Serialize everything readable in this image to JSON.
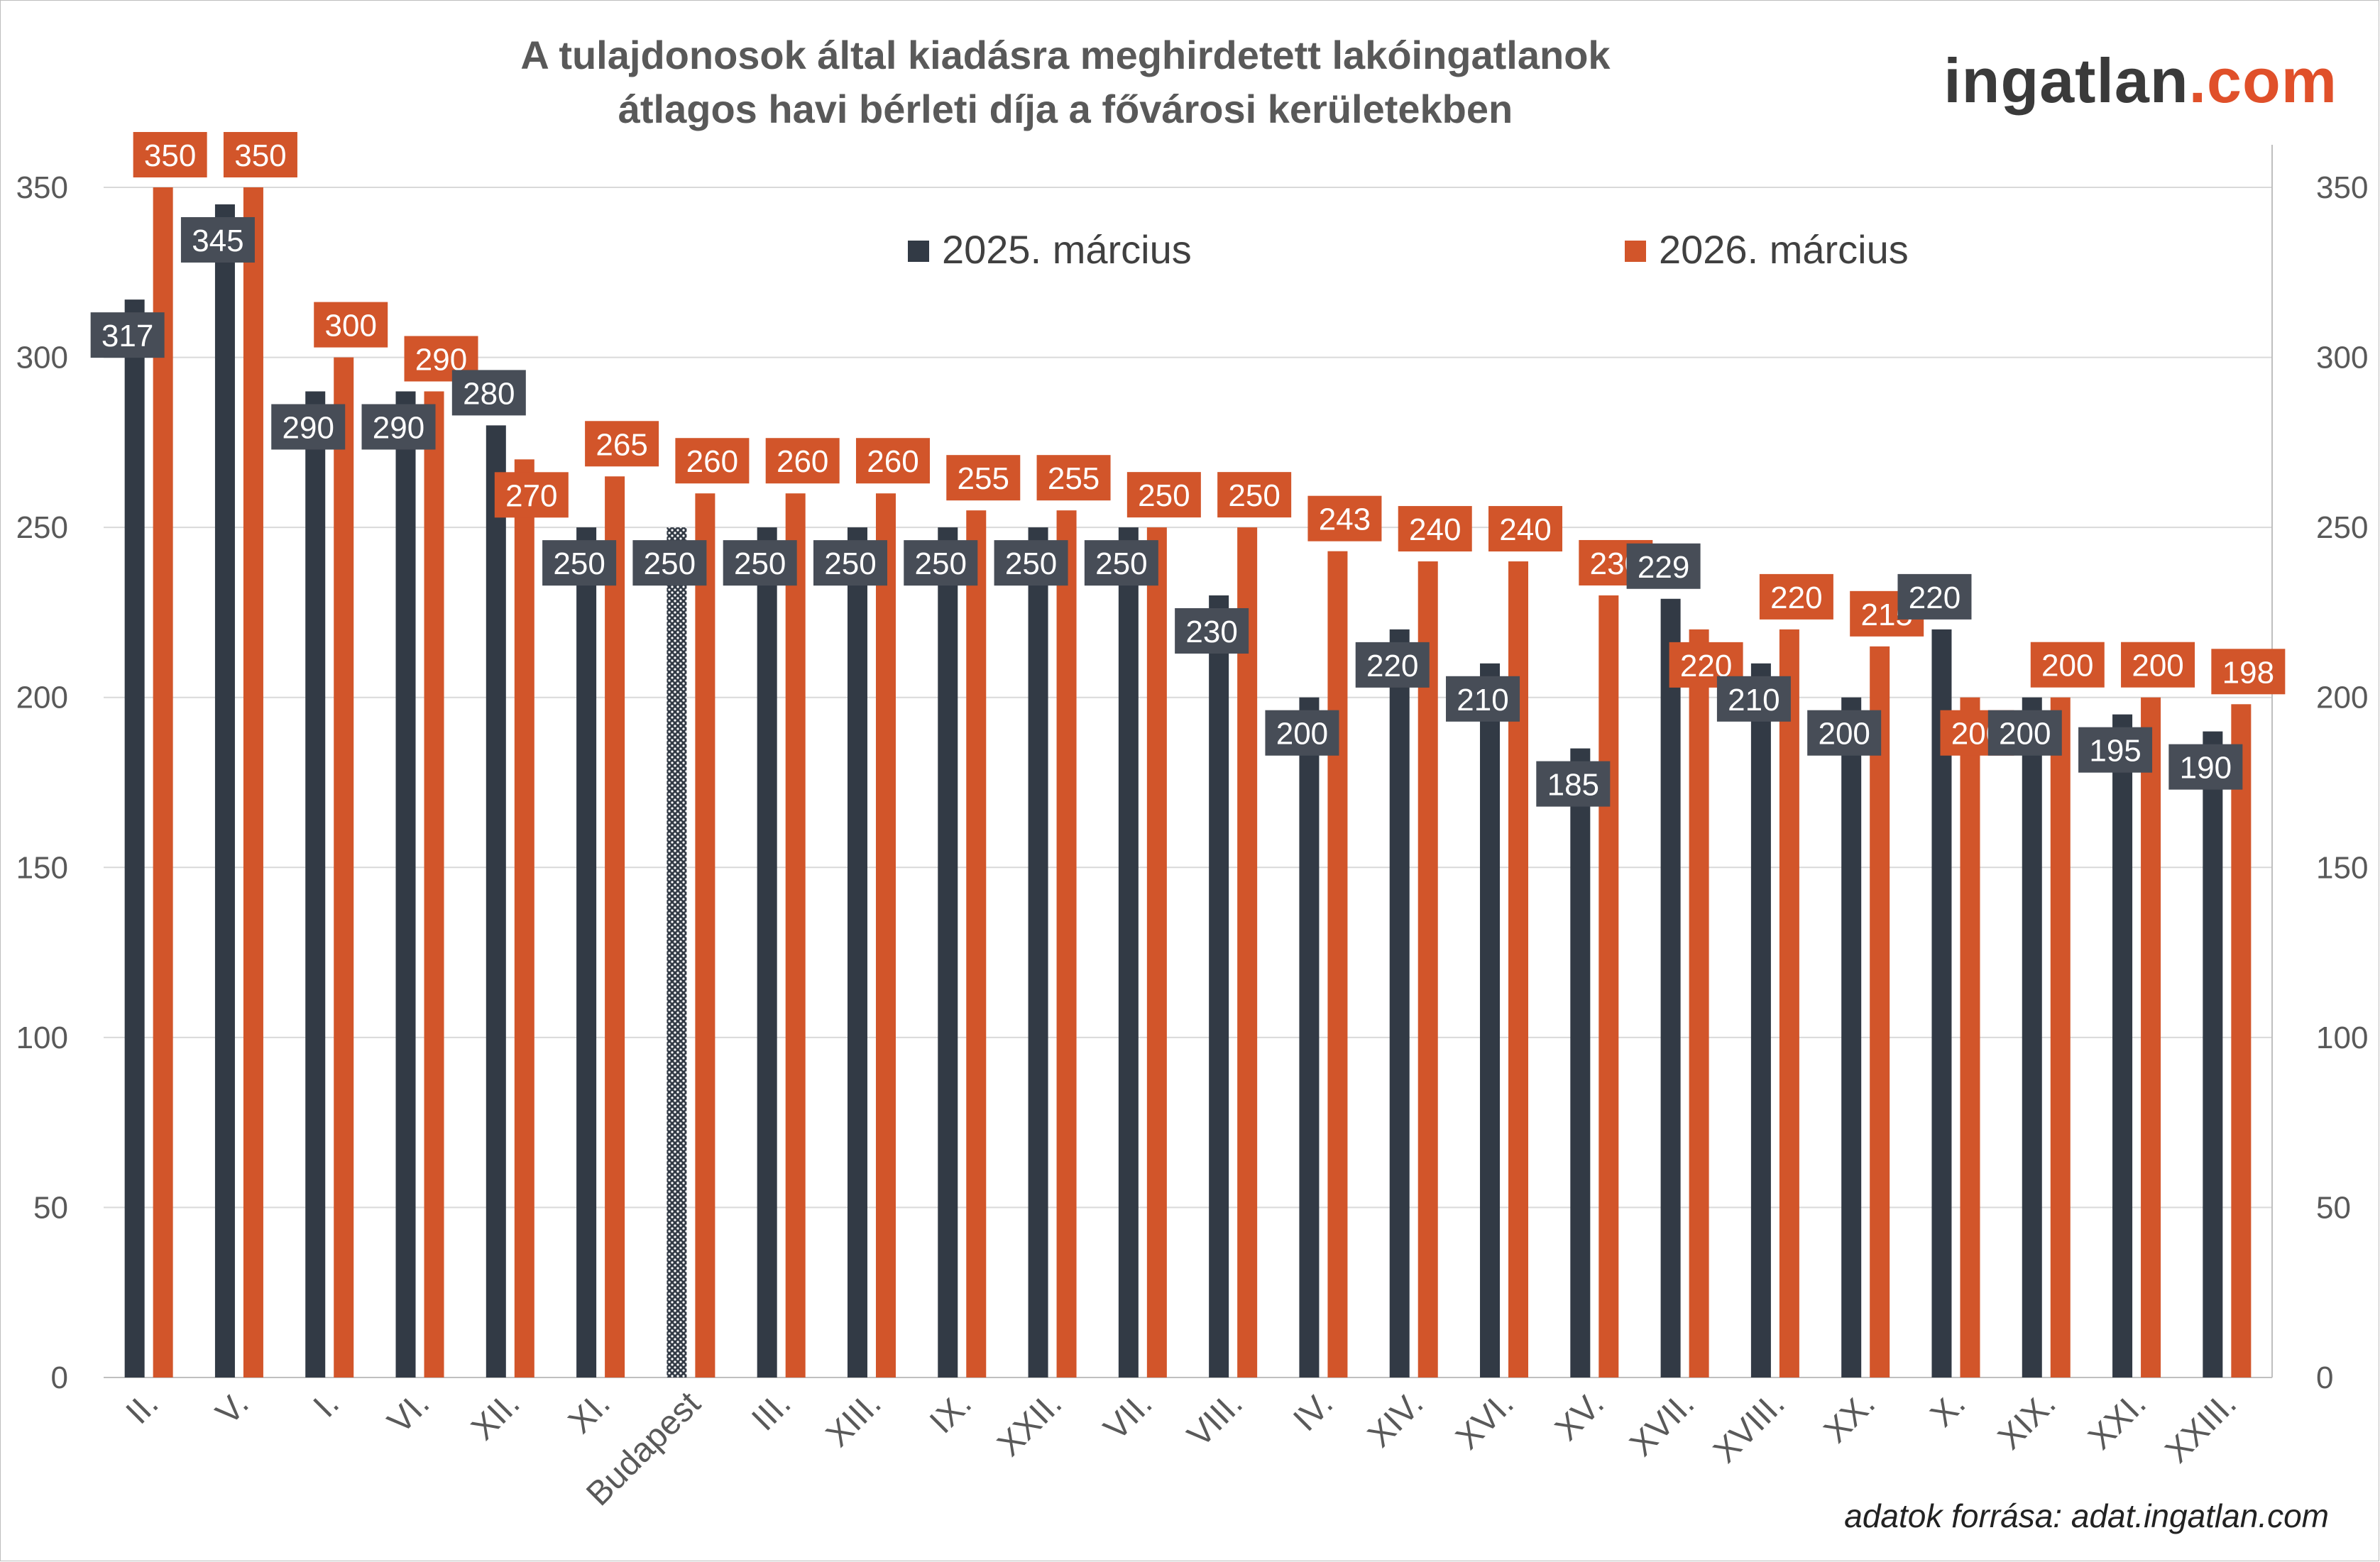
{
  "title": {
    "line1": "A tulajdonosok által kiadásra meghirdetett lakóingatlanok",
    "line2": "átlagos havi bérleti díja a fővárosi kerületekben"
  },
  "logo": {
    "main": "ingatlan",
    "dot": ".",
    "tld": "com"
  },
  "source": "adatok forrása: adat.ingatlan.com",
  "colors": {
    "series_2025": "#323a45",
    "series_2026": "#d2552a",
    "label_box_2025": "#474d57",
    "label_box_2026": "#d2552a",
    "grid": "#d9d9d9"
  },
  "chart_data": {
    "type": "bar",
    "title": "A tulajdonosok által kiadásra meghirdetett lakóingatlanok átlagos havi bérleti díja a fővárosi kerületekben",
    "xlabel": "",
    "ylabel": "",
    "ylim": [
      0,
      350
    ],
    "yticks": [
      0,
      50,
      100,
      150,
      200,
      250,
      300,
      350
    ],
    "secondary_yaxis": true,
    "grid": true,
    "legend_position": "top-center",
    "highlighted_category": "Budapest",
    "highlight_pattern": "dotted",
    "categories": [
      "II.",
      "V.",
      "I.",
      "VI.",
      "XII.",
      "XI.",
      "Budapest",
      "III.",
      "XIII.",
      "IX.",
      "XXII.",
      "VII.",
      "VIII.",
      "IV.",
      "XIV.",
      "XVI.",
      "XV.",
      "XVII.",
      "XVIII.",
      "XX.",
      "X.",
      "XIX.",
      "XXI.",
      "XXIII."
    ],
    "series": [
      {
        "name": "2025. március",
        "color": "#323a45",
        "values": [
          317,
          345,
          290,
          290,
          280,
          250,
          250,
          250,
          250,
          250,
          250,
          250,
          230,
          200,
          220,
          210,
          185,
          229,
          210,
          200,
          220,
          200,
          195,
          190
        ]
      },
      {
        "name": "2026. március",
        "color": "#d2552a",
        "values": [
          350,
          350,
          300,
          290,
          270,
          265,
          260,
          260,
          260,
          255,
          255,
          250,
          250,
          243,
          240,
          240,
          230,
          220,
          220,
          215,
          200,
          200,
          200,
          198
        ]
      }
    ]
  }
}
